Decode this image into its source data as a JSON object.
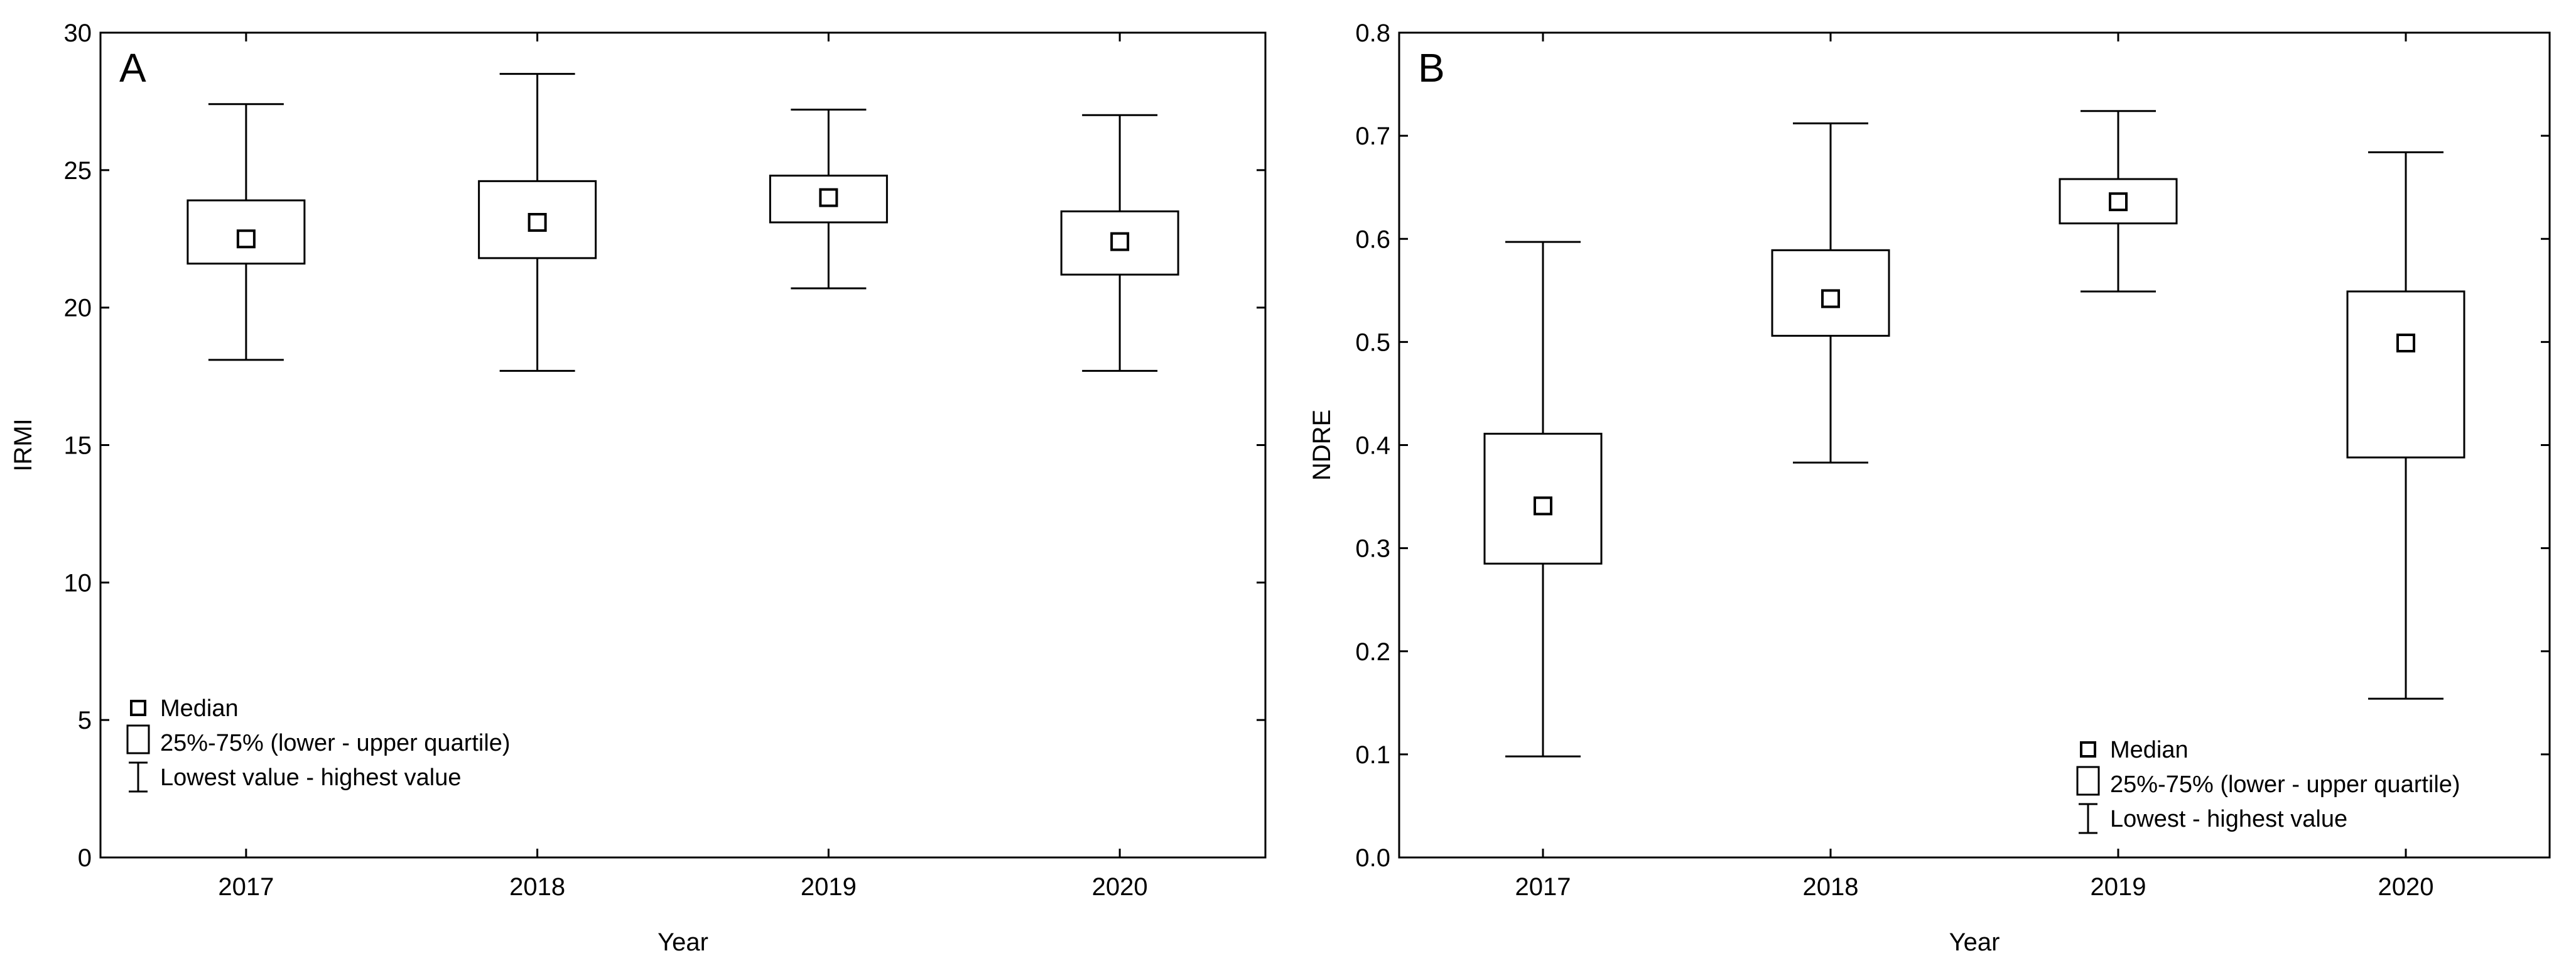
{
  "colors": {
    "panel_letter": "#e8141c",
    "stroke": "#000000",
    "background": "#ffffff"
  },
  "chart_data": [
    {
      "type": "box",
      "panel_label": "A",
      "xlabel": "Year",
      "ylabel": "IRMI",
      "categories": [
        "2017",
        "2018",
        "2019",
        "2020"
      ],
      "ylim": [
        0,
        30
      ],
      "y_ticks": [
        "0",
        "5",
        "10",
        "15",
        "20",
        "25",
        "30"
      ],
      "grid": false,
      "legend_position": "bottom-left",
      "legend": {
        "median": "Median",
        "quartile": "25%-75% (lower - upper quartile)",
        "range": "Lowest value - highest value"
      },
      "boxes": [
        {
          "min": 18.1,
          "q1": 21.6,
          "median": 22.5,
          "q3": 23.9,
          "max": 27.4
        },
        {
          "min": 17.7,
          "q1": 21.8,
          "median": 23.1,
          "q3": 24.6,
          "max": 28.5
        },
        {
          "min": 20.7,
          "q1": 23.1,
          "median": 24.0,
          "q3": 24.8,
          "max": 27.2
        },
        {
          "min": 17.7,
          "q1": 21.2,
          "median": 22.4,
          "q3": 23.5,
          "max": 27.0
        }
      ]
    },
    {
      "type": "box",
      "panel_label": "B",
      "xlabel": "Year",
      "ylabel": "NDRE",
      "categories": [
        "2017",
        "2018",
        "2019",
        "2020"
      ],
      "ylim": [
        0,
        0.8
      ],
      "y_ticks": [
        "0.0",
        "0.1",
        "0.2",
        "0.3",
        "0.4",
        "0.5",
        "0.6",
        "0.7",
        "0.8"
      ],
      "grid": false,
      "legend_position": "bottom-right",
      "legend": {
        "median": "Median",
        "quartile": "25%-75% (lower - upper quartile)",
        "range": "Lowest - highest value"
      },
      "boxes": [
        {
          "min": 0.098,
          "q1": 0.285,
          "median": 0.341,
          "q3": 0.411,
          "max": 0.597
        },
        {
          "min": 0.383,
          "q1": 0.506,
          "median": 0.542,
          "q3": 0.589,
          "max": 0.712
        },
        {
          "min": 0.549,
          "q1": 0.615,
          "median": 0.636,
          "q3": 0.658,
          "max": 0.724
        },
        {
          "min": 0.154,
          "q1": 0.388,
          "median": 0.499,
          "q3": 0.549,
          "max": 0.684
        }
      ]
    }
  ]
}
